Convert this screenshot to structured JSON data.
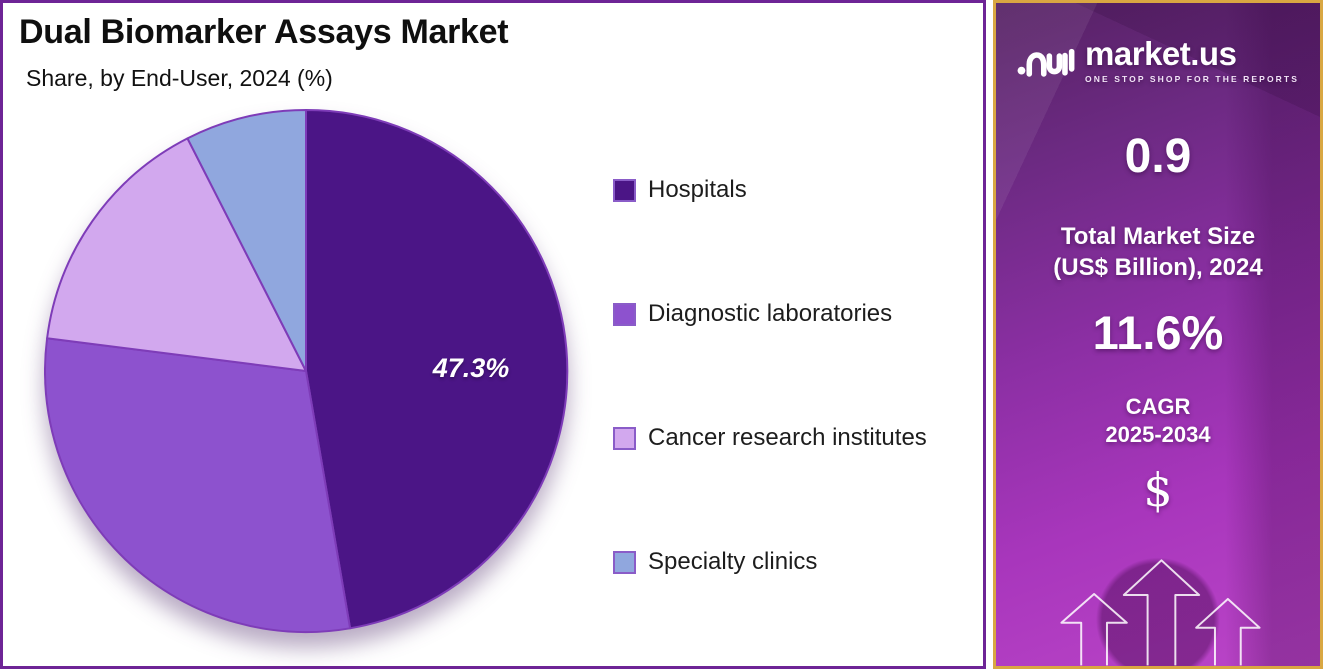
{
  "header": {
    "title": "Dual Biomarker Assays Market",
    "subtitle": "Share, by End-User, 2024 (%)"
  },
  "chart_data": {
    "type": "pie",
    "title": "Dual Biomarker Assays Market",
    "subtitle": "Share, by End-User, 2024 (%)",
    "unit": "%",
    "start_angle_deg": 0,
    "direction": "clockwise",
    "legend_position": "right",
    "series": [
      {
        "name": "Hospitals",
        "value": 47.3,
        "value_label": "47.3%",
        "color": "#4b1586"
      },
      {
        "name": "Diagnostic laboratories",
        "value": 29.7,
        "color": "#8d52ce"
      },
      {
        "name": "Cancer research institutes",
        "value": 15.5,
        "color": "#d2a8ee"
      },
      {
        "name": "Specialty clinics",
        "value": 7.5,
        "color": "#90a7de"
      }
    ],
    "slice_stroke_color": "#7e3cb8"
  },
  "sidebar": {
    "logo": {
      "brand": "market.us",
      "tagline": "ONE STOP SHOP FOR THE REPORTS"
    },
    "market_size_value": "0.9",
    "market_size_label_line1": "Total Market Size",
    "market_size_label_line2": "(US$ Billion), 2024",
    "cagr_value": "11.6%",
    "cagr_label_line1": "CAGR",
    "cagr_label_line2": "2025-2034",
    "currency_symbol": "$",
    "accent_border_color": "#d9a742"
  }
}
